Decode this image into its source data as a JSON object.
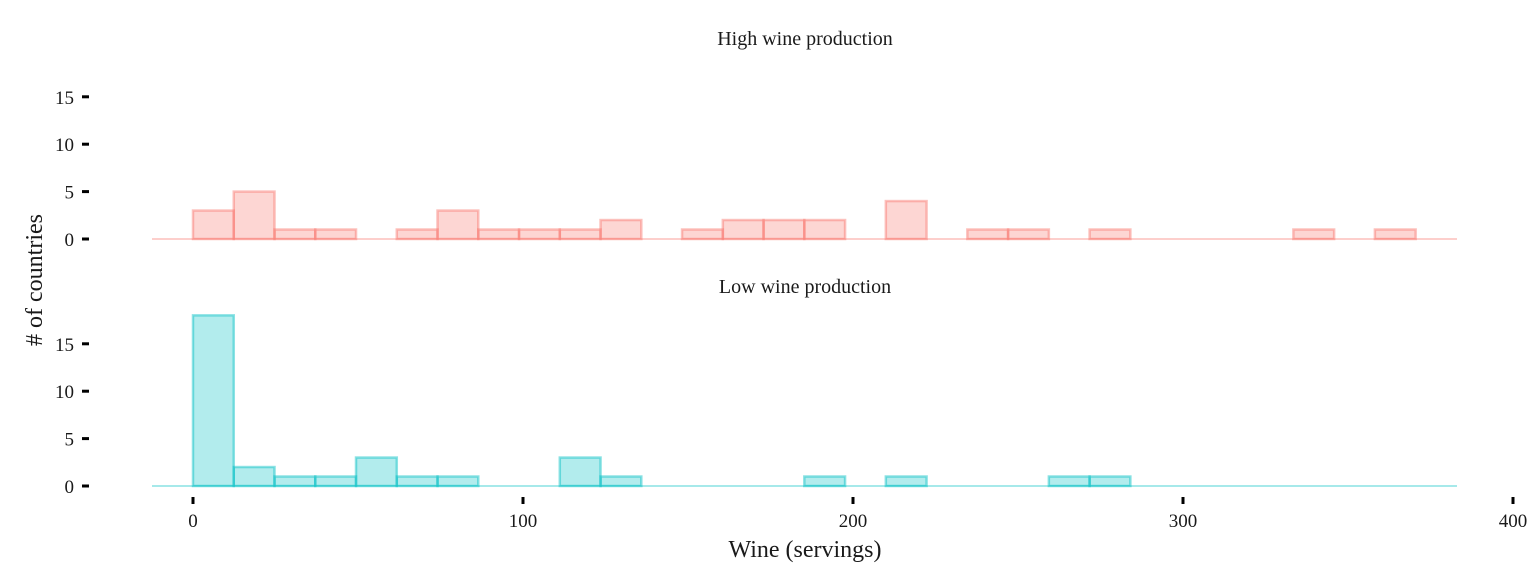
{
  "chart_data": {
    "type": "bar",
    "subtype": "faceted-histogram",
    "xlabel": "Wine (servings)",
    "ylabel": "# of countries",
    "xlim": [
      -12,
      400
    ],
    "ylim": [
      0,
      18
    ],
    "x_ticks": [
      0,
      100,
      200,
      300,
      400
    ],
    "y_ticks": [
      0,
      5,
      10,
      15
    ],
    "bin_width": 12.35,
    "bin_start": 0,
    "grid": false,
    "legend": "none",
    "panels": [
      {
        "title": "High wine production",
        "color": "#F8766D",
        "fill": "#F8766D",
        "counts": [
          3,
          5,
          1,
          1,
          0,
          1,
          3,
          1,
          1,
          1,
          2,
          0,
          1,
          2,
          2,
          2,
          0,
          4,
          0,
          1,
          1,
          0,
          1,
          0,
          0,
          0,
          0,
          1,
          0,
          1
        ]
      },
      {
        "title": "Low wine production",
        "color": "#00BFC4",
        "fill": "#00BFC4",
        "counts": [
          18,
          2,
          1,
          1,
          3,
          1,
          1,
          0,
          0,
          3,
          1,
          0,
          0,
          0,
          0,
          1,
          0,
          1,
          0,
          0,
          0,
          1,
          1,
          0,
          0,
          0,
          0,
          0,
          0,
          0,
          0
        ]
      }
    ]
  }
}
